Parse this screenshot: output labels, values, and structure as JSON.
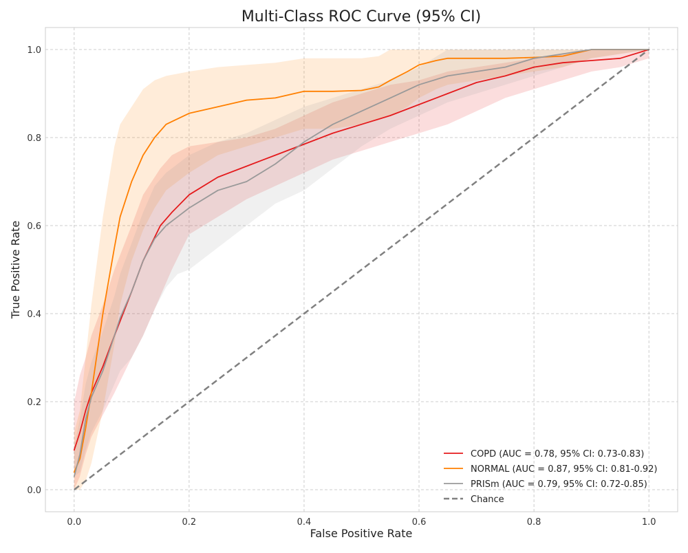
{
  "chart_data": {
    "type": "line",
    "title": "Multi-Class ROC Curve (95% CI)",
    "xlabel": "False Positive Rate",
    "ylabel": "True Positive Rate",
    "xlim": [
      -0.05,
      1.05
    ],
    "ylim": [
      -0.05,
      1.05
    ],
    "xticks": [
      0.0,
      0.2,
      0.4,
      0.6,
      0.8,
      1.0
    ],
    "yticks": [
      0.0,
      0.2,
      0.4,
      0.6,
      0.8,
      1.0
    ],
    "xtick_labels": [
      "0.0",
      "0.2",
      "0.4",
      "0.6",
      "0.8",
      "1.0"
    ],
    "ytick_labels": [
      "0.0",
      "0.2",
      "0.4",
      "0.6",
      "0.8",
      "1.0"
    ],
    "grid": true,
    "legend_position": "bottom-right",
    "series": [
      {
        "name": "COPD (AUC = 0.78, 95% CI: 0.73-0.83)",
        "color": "#e41a1c",
        "x": [
          0.0,
          0.01,
          0.02,
          0.03,
          0.05,
          0.07,
          0.1,
          0.12,
          0.15,
          0.17,
          0.2,
          0.25,
          0.3,
          0.35,
          0.4,
          0.45,
          0.5,
          0.55,
          0.6,
          0.65,
          0.7,
          0.75,
          0.8,
          0.85,
          0.9,
          0.95,
          1.0
        ],
        "y": [
          0.09,
          0.13,
          0.18,
          0.22,
          0.28,
          0.35,
          0.45,
          0.52,
          0.6,
          0.63,
          0.67,
          0.71,
          0.735,
          0.76,
          0.785,
          0.81,
          0.83,
          0.85,
          0.875,
          0.9,
          0.925,
          0.94,
          0.96,
          0.97,
          0.975,
          0.98,
          1.0
        ],
        "ci_lower": [
          0.0,
          0.03,
          0.08,
          0.12,
          0.17,
          0.22,
          0.3,
          0.35,
          0.44,
          0.5,
          0.58,
          0.62,
          0.66,
          0.69,
          0.72,
          0.75,
          0.77,
          0.79,
          0.81,
          0.83,
          0.86,
          0.89,
          0.91,
          0.93,
          0.95,
          0.96,
          0.98
        ],
        "ci_upper": [
          0.2,
          0.26,
          0.3,
          0.35,
          0.42,
          0.5,
          0.6,
          0.67,
          0.73,
          0.76,
          0.78,
          0.79,
          0.8,
          0.82,
          0.85,
          0.88,
          0.9,
          0.92,
          0.93,
          0.95,
          0.96,
          0.97,
          0.98,
          0.99,
          1.0,
          1.0,
          1.0
        ]
      },
      {
        "name": "NORMAL (AUC = 0.87, 95% CI: 0.81-0.92)",
        "color": "#ff7f00",
        "x": [
          0.0,
          0.01,
          0.02,
          0.03,
          0.05,
          0.07,
          0.08,
          0.1,
          0.12,
          0.14,
          0.16,
          0.2,
          0.25,
          0.3,
          0.35,
          0.4,
          0.45,
          0.5,
          0.53,
          0.55,
          0.58,
          0.6,
          0.63,
          0.65,
          0.7,
          0.75,
          0.8,
          0.85,
          0.9,
          1.0
        ],
        "y": [
          0.04,
          0.07,
          0.14,
          0.22,
          0.4,
          0.55,
          0.62,
          0.7,
          0.76,
          0.8,
          0.83,
          0.855,
          0.87,
          0.885,
          0.89,
          0.905,
          0.905,
          0.907,
          0.915,
          0.93,
          0.95,
          0.965,
          0.975,
          0.98,
          0.98,
          0.98,
          0.982,
          0.985,
          1.0,
          1.0
        ],
        "ci_lower": [
          0.0,
          0.0,
          0.02,
          0.06,
          0.18,
          0.33,
          0.42,
          0.52,
          0.59,
          0.64,
          0.68,
          0.72,
          0.76,
          0.78,
          0.8,
          0.82,
          0.82,
          0.83,
          0.84,
          0.85,
          0.87,
          0.89,
          0.91,
          0.92,
          0.93,
          0.94,
          0.95,
          0.96,
          0.98,
          1.0
        ],
        "ci_upper": [
          0.13,
          0.18,
          0.3,
          0.42,
          0.62,
          0.78,
          0.83,
          0.87,
          0.91,
          0.93,
          0.94,
          0.95,
          0.96,
          0.965,
          0.97,
          0.98,
          0.98,
          0.98,
          0.985,
          1.0,
          1.0,
          1.0,
          1.0,
          1.0,
          1.0,
          1.0,
          1.0,
          1.0,
          1.0,
          1.0
        ]
      },
      {
        "name": "PRISm (AUC = 0.79, 95% CI: 0.72-0.85)",
        "color": "#999999",
        "x": [
          0.0,
          0.01,
          0.02,
          0.03,
          0.05,
          0.07,
          0.08,
          0.1,
          0.12,
          0.14,
          0.16,
          0.18,
          0.2,
          0.25,
          0.3,
          0.35,
          0.4,
          0.45,
          0.5,
          0.55,
          0.6,
          0.65,
          0.7,
          0.75,
          0.8,
          0.85,
          0.9,
          1.0
        ],
        "y": [
          0.03,
          0.08,
          0.16,
          0.21,
          0.27,
          0.35,
          0.39,
          0.45,
          0.52,
          0.57,
          0.6,
          0.62,
          0.64,
          0.68,
          0.7,
          0.74,
          0.79,
          0.83,
          0.86,
          0.89,
          0.92,
          0.94,
          0.95,
          0.96,
          0.98,
          0.99,
          1.0,
          1.0
        ],
        "ci_lower": [
          0.03,
          0.04,
          0.09,
          0.13,
          0.18,
          0.24,
          0.27,
          0.3,
          0.35,
          0.41,
          0.46,
          0.49,
          0.5,
          0.55,
          0.6,
          0.65,
          0.68,
          0.73,
          0.78,
          0.82,
          0.85,
          0.88,
          0.9,
          0.92,
          0.94,
          0.96,
          0.98,
          1.0
        ],
        "ci_upper": [
          0.1,
          0.16,
          0.24,
          0.29,
          0.36,
          0.44,
          0.49,
          0.56,
          0.63,
          0.69,
          0.72,
          0.74,
          0.76,
          0.79,
          0.81,
          0.84,
          0.87,
          0.89,
          0.91,
          0.93,
          0.96,
          1.0,
          1.0,
          1.0,
          1.0,
          1.0,
          1.0,
          1.0
        ]
      },
      {
        "name": "Chance",
        "color": "#808080",
        "dashed": true,
        "x": [
          0.0,
          1.0
        ],
        "y": [
          0.0,
          1.0
        ]
      }
    ]
  }
}
